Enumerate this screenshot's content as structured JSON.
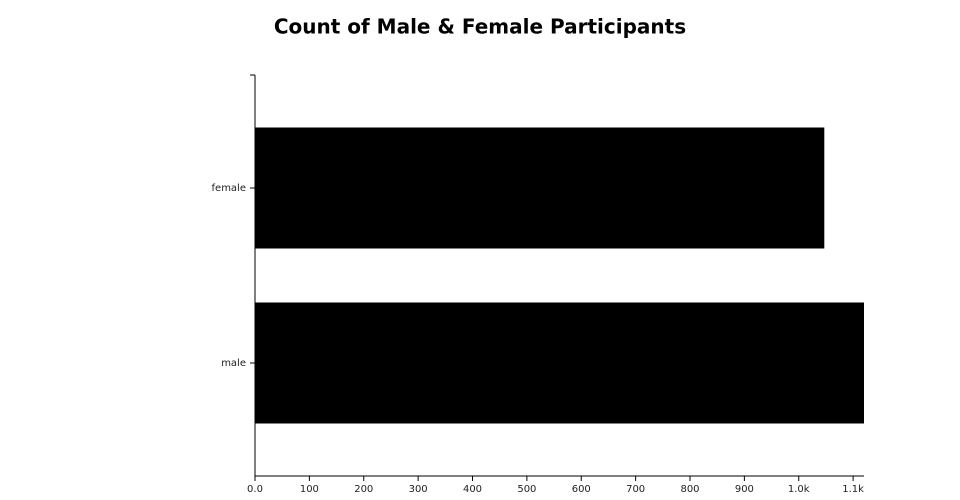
{
  "chart_data": {
    "type": "hbar",
    "title": "Count of Male & Female Participants",
    "categories": [
      "female",
      "male"
    ],
    "values": [
      1047,
      1120
    ],
    "color": "#000000",
    "xlim": [
      0,
      1120
    ],
    "xticks": [
      {
        "value": 0,
        "label": "0.0"
      },
      100,
      200,
      300,
      400,
      500,
      600,
      700,
      800,
      900,
      {
        "value": 1000,
        "label": "1.0k"
      },
      {
        "value": 1100,
        "label": "1.1k"
      }
    ]
  }
}
